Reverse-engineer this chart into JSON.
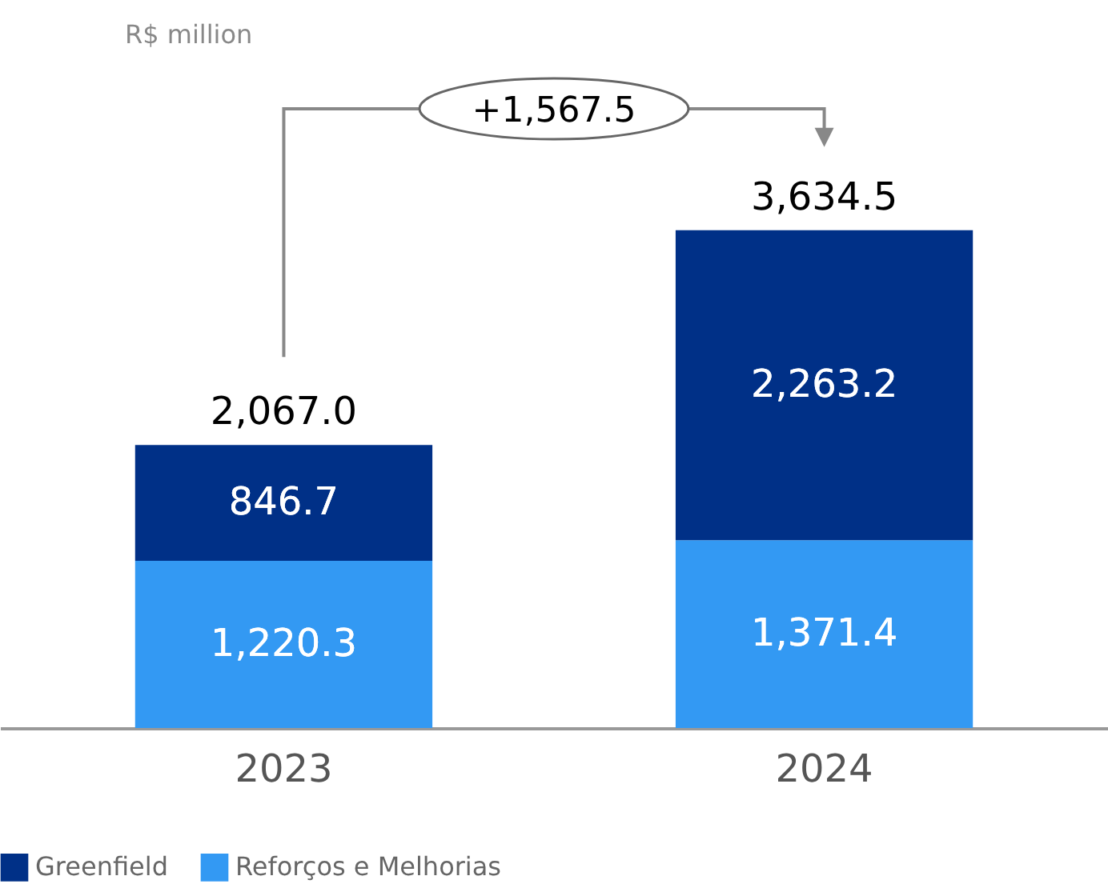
{
  "chart_data": {
    "type": "bar",
    "stacked": true,
    "data_labels": true,
    "legend": "bottom",
    "categories": [
      "2023",
      "2024"
    ],
    "series": [
      {
        "name": "Reforços e Melhorias",
        "color": "#3399f3",
        "values": [
          1220.3,
          1371.4
        ],
        "value_labels": [
          "1,220.3",
          "1,371.4"
        ]
      },
      {
        "name": "Greenfield",
        "color": "#003087",
        "values": [
          846.7,
          2263.2
        ],
        "value_labels": [
          "846.7",
          "2,263.2"
        ]
      }
    ],
    "totals": [
      "2,067.0",
      "3,634.5"
    ],
    "annotations": [
      "R$ million",
      "+1,567.5"
    ]
  }
}
